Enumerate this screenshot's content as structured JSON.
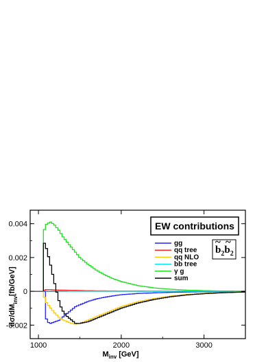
{
  "chart_data": {
    "type": "line",
    "title": "",
    "xlabel": "M",
    "xlabel_sub": "inv",
    "xlabel_unit": "[GeV]",
    "ylabel": "dσ/dM",
    "ylabel_sub": "inv",
    "ylabel_unit": "[fb/GeV]",
    "xlim": [
      900,
      3500
    ],
    "ylim": [
      -0.0028,
      0.0048
    ],
    "x_ticks": [
      1000,
      2000,
      3000
    ],
    "y_ticks": [
      -0.002,
      0,
      0.002,
      0.004
    ],
    "x_tick_labels": [
      "1000",
      "2000",
      "3000"
    ],
    "y_tick_labels": [
      "-0.002",
      "0",
      "0.002",
      "0.004"
    ],
    "grid": false,
    "legend_position": "top-right",
    "annotation_box": "EW contributions",
    "process_label": "b̃₂b̃₂",
    "process_label_parts": [
      "b",
      "2",
      "b",
      "2"
    ],
    "series": [
      {
        "name": "gg",
        "color": "#2222ff",
        "x": [
          1060,
          1100,
          1150,
          1200,
          1260,
          1300,
          1350,
          1400,
          1450,
          1500,
          1600,
          1700,
          1800,
          1900,
          2000,
          2200,
          2400,
          2600,
          2800,
          3000,
          3200,
          3500
        ],
        "y": [
          0.0008,
          -0.0018,
          -0.0019,
          -0.0018,
          -0.0017,
          -0.0015,
          -0.0013,
          -0.0011,
          -0.0009,
          -0.0008,
          -0.0006,
          -0.00045,
          -0.00035,
          -0.00027,
          -0.0002,
          -0.00013,
          -9e-05,
          -6e-05,
          -4e-05,
          -3e-05,
          -2e-05,
          -1e-05
        ]
      },
      {
        "name": "qq tree",
        "color": "#ff2222",
        "x": [
          1060,
          1100,
          1150,
          1200,
          1300,
          1400,
          1500,
          1700,
          2000,
          2500,
          3000,
          3500
        ],
        "y": [
          5e-05,
          0.0001,
          0.0001,
          8e-05,
          7e-05,
          6e-05,
          5e-05,
          3e-05,
          2e-05,
          1e-05,
          5e-06,
          0.0
        ]
      },
      {
        "name": "qq NLO",
        "color": "#ffcc00",
        "x": [
          1060,
          1100,
          1150,
          1200,
          1260,
          1300,
          1350,
          1400,
          1450,
          1500,
          1600,
          1700,
          1800,
          1900,
          2000,
          2200,
          2400,
          2600,
          2800,
          3000,
          3200,
          3500
        ],
        "y": [
          -0.0002,
          -0.0007,
          -0.001,
          -0.0013,
          -0.0016,
          -0.0017,
          -0.0018,
          -0.0019,
          -0.00195,
          -0.0019,
          -0.0017,
          -0.0015,
          -0.0013,
          -0.0011,
          -0.0009,
          -0.00062,
          -0.00042,
          -0.00028,
          -0.00018,
          -0.00012,
          -8e-05,
          -4e-05
        ]
      },
      {
        "name": "bb tree",
        "color": "#00e5ee",
        "x": [
          1060,
          1200,
          1500,
          2000,
          2500,
          3000,
          3500
        ],
        "y": [
          2e-05,
          2e-05,
          1e-05,
          1e-05,
          0.0,
          0.0,
          0.0
        ]
      },
      {
        "name": "γ g",
        "color": "#22dd22",
        "x": [
          1060,
          1100,
          1150,
          1200,
          1250,
          1300,
          1350,
          1400,
          1450,
          1500,
          1600,
          1700,
          1800,
          1900,
          2000,
          2200,
          2400,
          2600,
          2800,
          3000,
          3200,
          3500
        ],
        "y": [
          0.0035,
          0.004,
          0.0041,
          0.0039,
          0.0036,
          0.0032,
          0.0029,
          0.0026,
          0.0023,
          0.002,
          0.0016,
          0.00125,
          0.00098,
          0.00075,
          0.00058,
          0.00034,
          0.0002,
          0.00012,
          7e-05,
          4e-05,
          2e-05,
          1e-05
        ]
      },
      {
        "name": "sum",
        "color": "#000000",
        "x": [
          1060,
          1100,
          1150,
          1200,
          1260,
          1300,
          1350,
          1400,
          1450,
          1500,
          1600,
          1700,
          1800,
          1900,
          2000,
          2200,
          2400,
          2600,
          2800,
          3000,
          3200,
          3500
        ],
        "y": [
          0.003,
          0.0025,
          0.0015,
          0.0004,
          -0.0008,
          -0.0012,
          -0.0015,
          -0.0017,
          -0.0019,
          -0.0019,
          -0.0018,
          -0.0016,
          -0.0014,
          -0.0012,
          -0.001,
          -0.0007,
          -0.00048,
          -0.00032,
          -0.00021,
          -0.00014,
          -9e-05,
          -4e-05
        ]
      }
    ]
  }
}
